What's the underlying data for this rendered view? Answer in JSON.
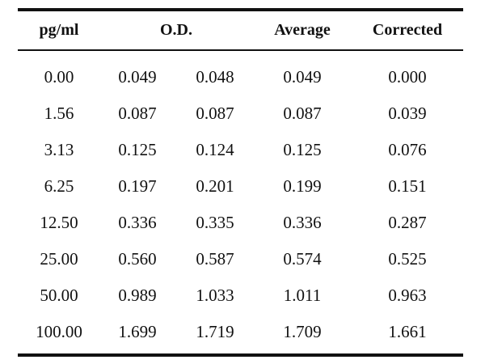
{
  "table": {
    "headers": {
      "concentration": "pg/ml",
      "od": "O.D.",
      "average": "Average",
      "corrected": "Corrected"
    },
    "rows": [
      {
        "conc": "0.00",
        "od1": "0.049",
        "od2": "0.048",
        "avg": "0.049",
        "corr": "0.000"
      },
      {
        "conc": "1.56",
        "od1": "0.087",
        "od2": "0.087",
        "avg": "0.087",
        "corr": "0.039"
      },
      {
        "conc": "3.13",
        "od1": "0.125",
        "od2": "0.124",
        "avg": "0.125",
        "corr": "0.076"
      },
      {
        "conc": "6.25",
        "od1": "0.197",
        "od2": "0.201",
        "avg": "0.199",
        "corr": "0.151"
      },
      {
        "conc": "12.50",
        "od1": "0.336",
        "od2": "0.335",
        "avg": "0.336",
        "corr": "0.287"
      },
      {
        "conc": "25.00",
        "od1": "0.560",
        "od2": "0.587",
        "avg": "0.574",
        "corr": "0.525"
      },
      {
        "conc": "50.00",
        "od1": "0.989",
        "od2": "1.033",
        "avg": "1.011",
        "corr": "0.963"
      },
      {
        "conc": "100.00",
        "od1": "1.699",
        "od2": "1.719",
        "avg": "1.709",
        "corr": "1.661"
      }
    ]
  }
}
